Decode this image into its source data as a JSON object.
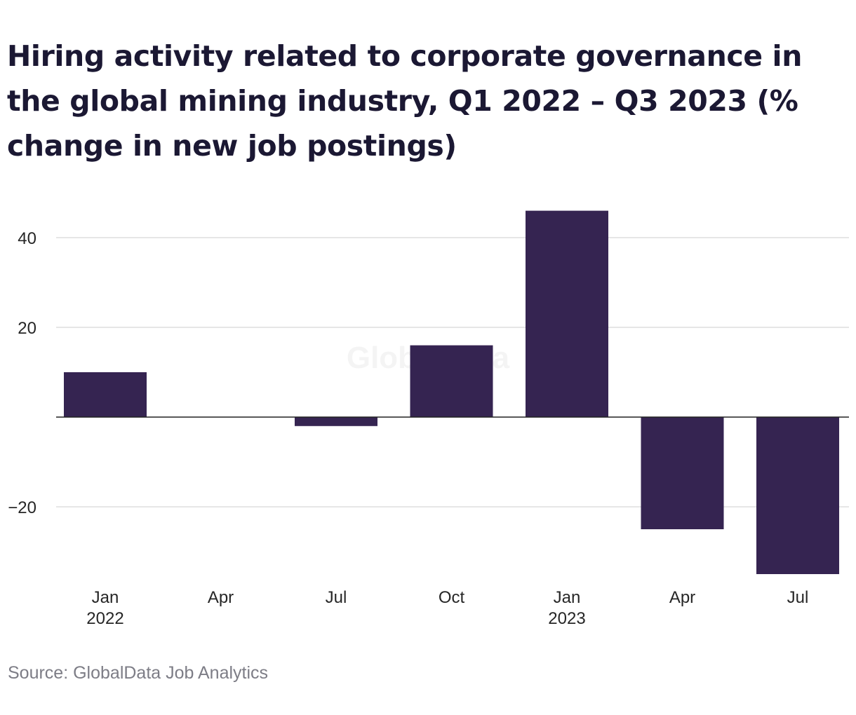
{
  "chart_data": {
    "type": "bar",
    "title": "Hiring activity related to corporate governance in the global mining industry, Q1 2022 – Q3 2023 (% change in new job postings)",
    "categories": [
      "Jan 2022",
      "Apr 2022",
      "Jul 2022",
      "Oct 2022",
      "Jan 2023",
      "Apr 2023",
      "Jul 2023"
    ],
    "tick_labels": [
      {
        "month": "Jan",
        "year": "2022"
      },
      {
        "month": "Apr",
        "year": ""
      },
      {
        "month": "Jul",
        "year": ""
      },
      {
        "month": "Oct",
        "year": ""
      },
      {
        "month": "Jan",
        "year": "2023"
      },
      {
        "month": "Apr",
        "year": ""
      },
      {
        "month": "Jul",
        "year": ""
      }
    ],
    "values": [
      10,
      0,
      -2,
      16,
      46,
      -25,
      -35
    ],
    "ylim": [
      -35,
      46
    ],
    "yticks": [
      40,
      20,
      -20
    ],
    "ytick_labels": [
      "40",
      "20",
      "−20"
    ],
    "grid": true,
    "bar_color": "#352451",
    "watermark": "GlobalData",
    "source": "Source: GlobalData Job Analytics"
  }
}
